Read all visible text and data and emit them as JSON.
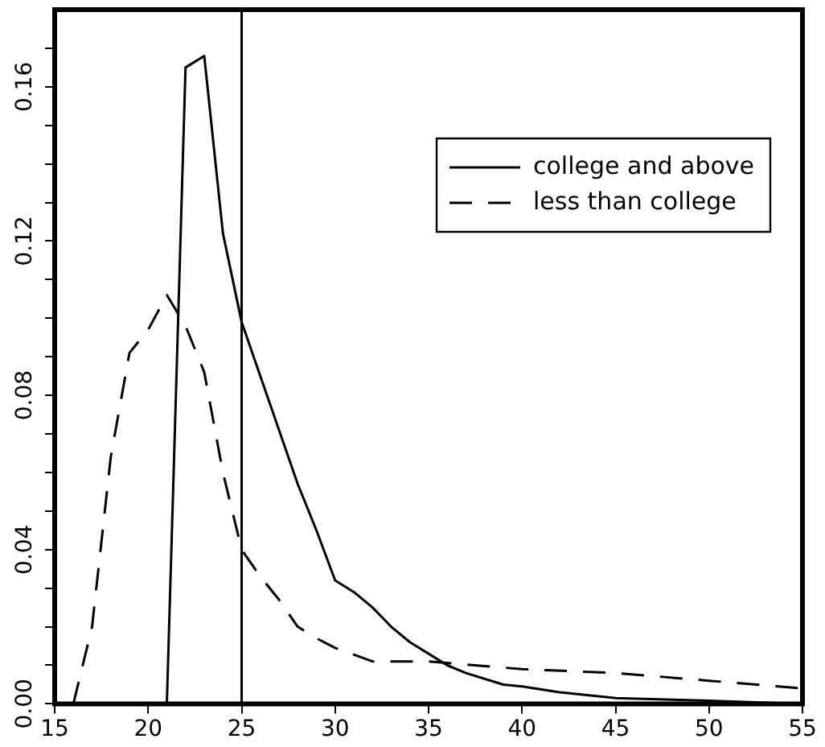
{
  "chart_data": {
    "type": "line",
    "xlim": [
      15,
      55
    ],
    "xticks": [
      15,
      20,
      25,
      30,
      35,
      40,
      45,
      50,
      55
    ],
    "ylim": [
      0,
      0.18
    ],
    "yticks": [
      {
        "value": 0,
        "label": "0.00"
      },
      {
        "value": 0.01,
        "label": null
      },
      {
        "value": 0.02,
        "label": null
      },
      {
        "value": 0.03,
        "label": null
      },
      0.04,
      {
        "value": 0.05,
        "label": null
      },
      {
        "value": 0.06,
        "label": null
      },
      {
        "value": 0.07,
        "label": null
      },
      0.08,
      {
        "value": 0.09,
        "label": null
      },
      {
        "value": 0.1,
        "label": null
      },
      {
        "value": 0.11,
        "label": null
      },
      0.12,
      {
        "value": 0.13,
        "label": null
      },
      {
        "value": 0.14,
        "label": null
      },
      {
        "value": 0.15,
        "label": null
      },
      0.16,
      {
        "value": 0.17,
        "label": null
      }
    ],
    "grid": false,
    "legend": "top right",
    "marker": "none",
    "ref_lines": [
      {
        "axis": "x",
        "value": 25,
        "color": "#000000"
      }
    ],
    "series": [
      {
        "name": "college and above",
        "color": "#000000",
        "line_style": "solid",
        "x": [
          21,
          22,
          23,
          24,
          25,
          26,
          27,
          28,
          29,
          30,
          31,
          32,
          33,
          34,
          35,
          36,
          37,
          39,
          40,
          42,
          45,
          50,
          55
        ],
        "values": [
          0,
          0.165,
          0.168,
          0.122,
          0.099,
          0.085,
          0.071,
          0.057,
          0.045,
          0.032,
          0.029,
          0.025,
          0.02,
          0.016,
          0.013,
          0.01,
          0.008,
          0.005,
          0.0045,
          0.003,
          0.0015,
          0.0008,
          0
        ]
      },
      {
        "name": "less than college",
        "color": "#000000",
        "line_style": "dashed",
        "x": [
          16,
          17,
          18,
          19,
          20,
          21,
          22,
          23,
          24,
          25,
          26,
          27,
          28,
          29,
          30,
          32,
          35,
          40,
          45,
          50,
          55
        ],
        "values": [
          0,
          0.02,
          0.064,
          0.091,
          0.097,
          0.106,
          0.098,
          0.086,
          0.06,
          0.04,
          0.033,
          0.027,
          0.02,
          0.017,
          0.0145,
          0.011,
          0.011,
          0.009,
          0.008,
          0.006,
          0.004
        ]
      }
    ]
  }
}
